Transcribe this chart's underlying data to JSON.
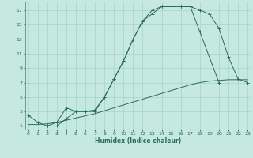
{
  "line_color": "#2a6b5a",
  "bg_color": "#c5e8e0",
  "grid_color": "#9ecfc4",
  "xlabel": "Humidex (Indice chaleur)",
  "yticks": [
    1,
    3,
    5,
    7,
    9,
    11,
    13,
    15,
    17
  ],
  "xticks": [
    0,
    1,
    2,
    3,
    4,
    5,
    6,
    7,
    8,
    9,
    10,
    11,
    12,
    13,
    14,
    15,
    16,
    17,
    18,
    19,
    20,
    21,
    22,
    23
  ],
  "xlim": [
    -0.3,
    23.3
  ],
  "ylim": [
    0.5,
    18.2
  ],
  "lineA_x": [
    0,
    1,
    2,
    3,
    4,
    5,
    6,
    7,
    8,
    9,
    10,
    11,
    12,
    13,
    14,
    15,
    16,
    17,
    18,
    20
  ],
  "lineA_y": [
    2.5,
    1.5,
    1.0,
    1.5,
    3.5,
    3.0,
    3.0,
    3.2,
    5.0,
    7.5,
    10.0,
    13.0,
    15.5,
    17.0,
    17.5,
    17.5,
    17.5,
    17.5,
    14.0,
    7.0
  ],
  "lineB_x": [
    2,
    3,
    4,
    5,
    6,
    7,
    8,
    9,
    10,
    11,
    12,
    13,
    14,
    15,
    16,
    17,
    18,
    19,
    20,
    21,
    22,
    23
  ],
  "lineB_y": [
    1.0,
    1.0,
    2.0,
    3.0,
    3.0,
    3.0,
    5.0,
    7.5,
    10.0,
    13.0,
    15.5,
    16.5,
    17.5,
    17.5,
    17.5,
    17.5,
    17.0,
    16.5,
    14.5,
    10.5,
    7.5,
    7.0
  ],
  "lineC_x": [
    0,
    1,
    2,
    3,
    4,
    5,
    6,
    7,
    8,
    9,
    10,
    11,
    12,
    13,
    14,
    15,
    16,
    17,
    18,
    19,
    20,
    21,
    22,
    23
  ],
  "lineC_y": [
    1.2,
    1.2,
    1.3,
    1.5,
    1.8,
    2.1,
    2.4,
    2.7,
    3.1,
    3.5,
    3.9,
    4.3,
    4.7,
    5.1,
    5.5,
    5.9,
    6.3,
    6.7,
    7.0,
    7.2,
    7.3,
    7.4,
    7.4,
    7.4
  ]
}
